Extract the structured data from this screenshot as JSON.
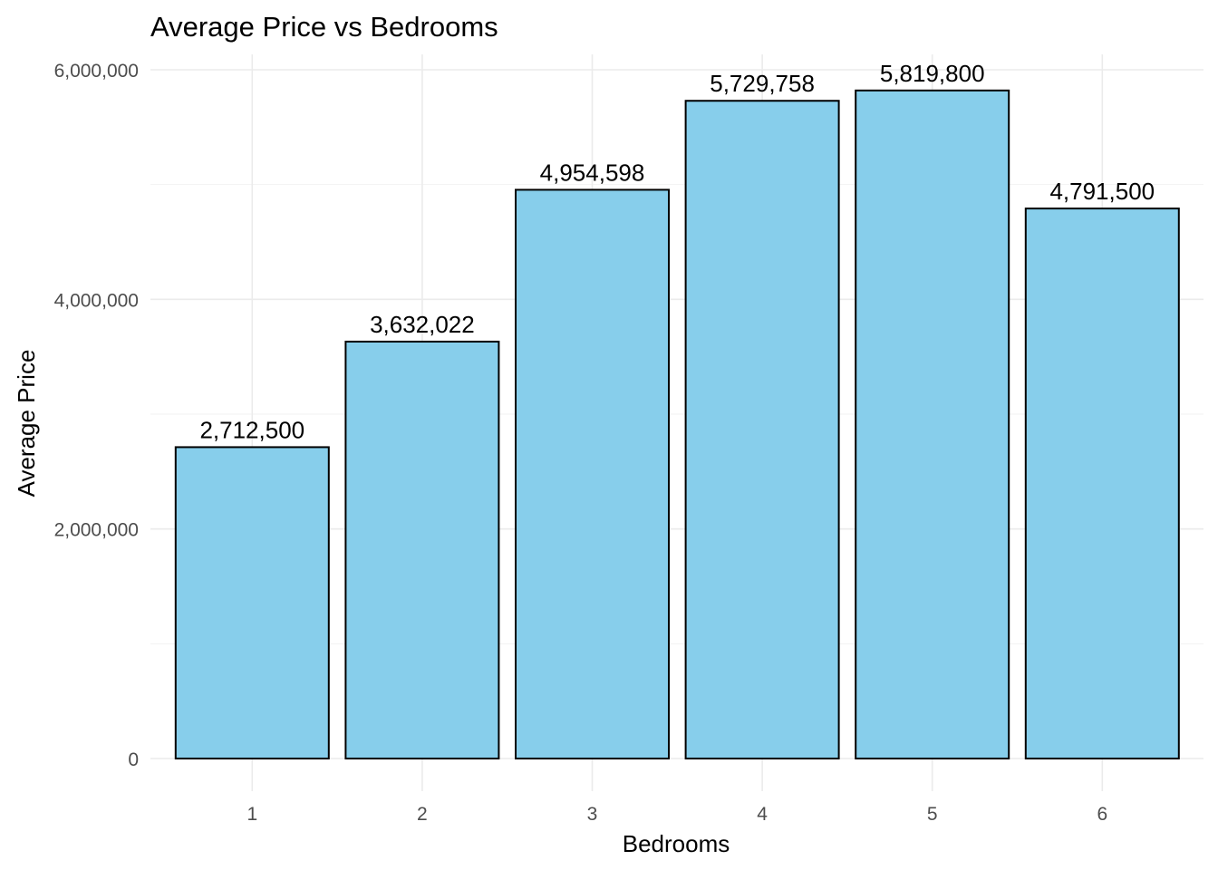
{
  "chart_data": {
    "type": "bar",
    "title": "Average Price vs Bedrooms",
    "xlabel": "Bedrooms",
    "ylabel": "Average Price",
    "categories": [
      "1",
      "2",
      "3",
      "4",
      "5",
      "6"
    ],
    "values": [
      2712500,
      3632022,
      4954598,
      5729758,
      5819800,
      4791500
    ],
    "data_labels": [
      "2,712,500",
      "3,632,022",
      "4,954,598",
      "5,729,758",
      "5,819,800",
      "4,791,500"
    ],
    "ylim": [
      0,
      6000000
    ],
    "y_ticks": [
      0,
      2000000,
      4000000,
      6000000
    ],
    "y_tick_labels": [
      "0",
      "2,000,000",
      "4,000,000",
      "6,000,000"
    ],
    "y_minor_ticks": [
      1000000,
      3000000,
      5000000
    ],
    "grid": true,
    "bar_fill": "#87ceeb",
    "bar_stroke": "#000000"
  }
}
